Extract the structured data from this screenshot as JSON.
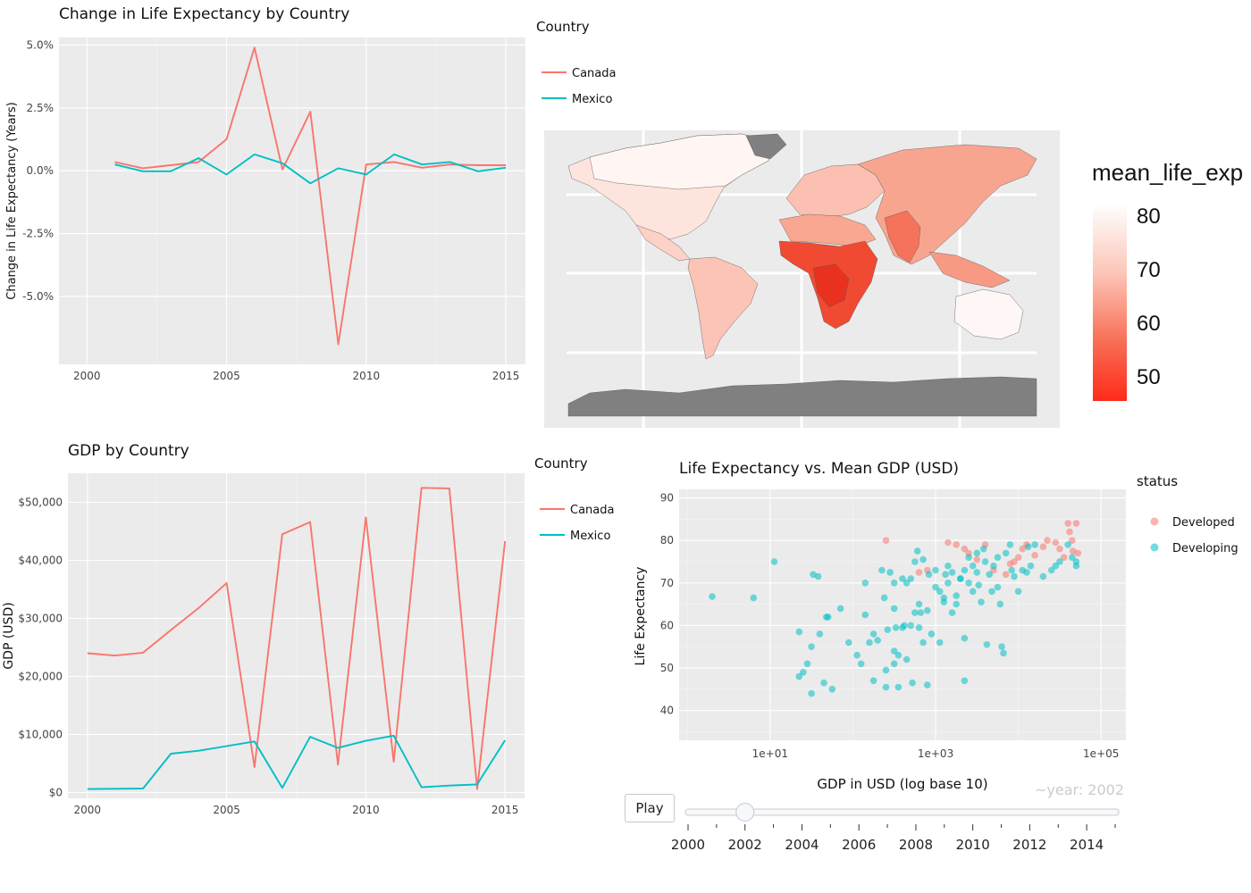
{
  "chart_data": [
    {
      "type": "line",
      "title": "Change in Life Expectancy by Country",
      "xlabel": "",
      "ylabel": "Change in Life Expectancy (Years)",
      "xlim": [
        1999,
        2015.7
      ],
      "ylim": [
        -7.7,
        5.3
      ],
      "x_ticks": [
        2000,
        2005,
        2010,
        2015
      ],
      "y_ticks": [
        -5,
        -2.5,
        0,
        2.5,
        5
      ],
      "y_tick_labels": [
        "-5.0%",
        "-2.5%",
        "0.0%",
        "2.5%",
        "5.0%"
      ],
      "legend_title": "Country",
      "grid": true,
      "x": [
        2001,
        2002,
        2003,
        2004,
        2005,
        2006,
        2007,
        2008,
        2009,
        2010,
        2011,
        2012,
        2013,
        2014,
        2015
      ],
      "series": [
        {
          "name": "Canada",
          "color": "#f8766d",
          "values": [
            0.35,
            0.1,
            0.22,
            0.35,
            1.25,
            4.9,
            0.05,
            2.35,
            -6.9,
            0.25,
            0.35,
            0.12,
            0.25,
            0.22,
            0.22
          ]
        },
        {
          "name": "Mexico",
          "color": "#00bfc4",
          "values": [
            0.25,
            -0.02,
            -0.02,
            0.5,
            -0.15,
            0.65,
            0.3,
            -0.5,
            0.1,
            -0.15,
            0.65,
            0.25,
            0.35,
            -0.02,
            0.12
          ]
        }
      ]
    },
    {
      "type": "heatmap",
      "title": "",
      "legend_title": "mean_life_exp",
      "scale_ticks": [
        80,
        70,
        60,
        50
      ],
      "scale_range": [
        45,
        83
      ],
      "colors": {
        "high": "#ffffff",
        "low": "#ff2a1a",
        "missing": "#808080",
        "panel": "#ebebeb"
      }
    },
    {
      "type": "line",
      "title": "GDP by Country",
      "xlabel": "",
      "ylabel": "GDP (USD)",
      "xlim": [
        1999.3,
        2015.7
      ],
      "ylim": [
        -1000,
        55000
      ],
      "x_ticks": [
        2000,
        2005,
        2010,
        2015
      ],
      "y_ticks": [
        0,
        10000,
        20000,
        30000,
        40000,
        50000
      ],
      "y_tick_labels": [
        "$0",
        "$10,000",
        "$20,000",
        "$30,000",
        "$40,000",
        "$50,000"
      ],
      "legend_title": "Country",
      "grid": true,
      "x": [
        2000,
        2001,
        2002,
        2003,
        2004,
        2005,
        2006,
        2007,
        2008,
        2009,
        2010,
        2011,
        2012,
        2013,
        2014,
        2015
      ],
      "series": [
        {
          "name": "Canada",
          "color": "#f8766d",
          "values": [
            24000,
            23600,
            24100,
            28000,
            31800,
            36100,
            4400,
            44500,
            46600,
            4800,
            47400,
            5300,
            52500,
            52400,
            600,
            43300
          ]
        },
        {
          "name": "Mexico",
          "color": "#00bfc4",
          "values": [
            600,
            650,
            700,
            6700,
            7200,
            8000,
            8800,
            800,
            9600,
            7700,
            8900,
            9800,
            900,
            1200,
            1400,
            9000
          ]
        }
      ]
    },
    {
      "type": "scatter",
      "title": "Life Expectancy vs. Mean GDP (USD)",
      "xlabel": "GDP in USD (log base 10)",
      "ylabel": "Life Expectancy",
      "x_scale": "log10",
      "xlim_log10": [
        -0.1,
        5.3
      ],
      "ylim": [
        33,
        92
      ],
      "x_ticks_log10": [
        1,
        3,
        5
      ],
      "x_tick_labels": [
        "1e+01",
        "1e+03",
        "1e+05"
      ],
      "y_ticks": [
        40,
        50,
        60,
        70,
        80,
        90
      ],
      "legend_title": "status",
      "grid": true,
      "series": [
        {
          "name": "Developed",
          "color": "#f8766d",
          "points": [
            [
              2.4,
              80
            ],
            [
              2.9,
              73
            ],
            [
              2.8,
              72.5
            ],
            [
              3.15,
              79.5
            ],
            [
              3.25,
              79
            ],
            [
              3.35,
              78
            ],
            [
              3.4,
              77
            ],
            [
              3.5,
              75.5
            ],
            [
              3.6,
              79
            ],
            [
              3.7,
              73
            ],
            [
              3.85,
              72
            ],
            [
              3.9,
              74.5
            ],
            [
              3.95,
              75
            ],
            [
              4.0,
              76
            ],
            [
              4.05,
              78
            ],
            [
              4.1,
              79
            ],
            [
              4.2,
              76.5
            ],
            [
              4.3,
              78.5
            ],
            [
              4.35,
              80
            ],
            [
              4.45,
              79.5
            ],
            [
              4.5,
              78
            ],
            [
              4.55,
              76
            ],
            [
              4.6,
              84
            ],
            [
              4.62,
              82
            ],
            [
              4.65,
              80
            ],
            [
              4.66,
              77.5
            ],
            [
              4.7,
              84
            ],
            [
              4.72,
              77
            ]
          ]
        },
        {
          "name": "Developing",
          "color": "#00bfc4",
          "points": [
            [
              0.3,
              66.8
            ],
            [
              0.8,
              66.5
            ],
            [
              1.05,
              75
            ],
            [
              1.35,
              58.5
            ],
            [
              1.35,
              48
            ],
            [
              1.4,
              49
            ],
            [
              1.45,
              51
            ],
            [
              1.5,
              55
            ],
            [
              1.5,
              44
            ],
            [
              1.52,
              72
            ],
            [
              1.58,
              71.5
            ],
            [
              1.6,
              58
            ],
            [
              1.65,
              46.5
            ],
            [
              1.68,
              62
            ],
            [
              1.7,
              62
            ],
            [
              1.75,
              45
            ],
            [
              1.85,
              64
            ],
            [
              1.95,
              56
            ],
            [
              2.05,
              53
            ],
            [
              2.1,
              51
            ],
            [
              2.15,
              70
            ],
            [
              2.15,
              62.5
            ],
            [
              2.2,
              56
            ],
            [
              2.25,
              47
            ],
            [
              2.25,
              58
            ],
            [
              2.3,
              56.5
            ],
            [
              2.35,
              73
            ],
            [
              2.38,
              66.5
            ],
            [
              2.4,
              49.5
            ],
            [
              2.4,
              45.5
            ],
            [
              2.42,
              59
            ],
            [
              2.45,
              72.5
            ],
            [
              2.5,
              70
            ],
            [
              2.5,
              54
            ],
            [
              2.5,
              51
            ],
            [
              2.5,
              64
            ],
            [
              2.52,
              59.5
            ],
            [
              2.55,
              53
            ],
            [
              2.55,
              45.5
            ],
            [
              2.6,
              71
            ],
            [
              2.6,
              59.5
            ],
            [
              2.62,
              60
            ],
            [
              2.65,
              52
            ],
            [
              2.65,
              70
            ],
            [
              2.7,
              71
            ],
            [
              2.7,
              60
            ],
            [
              2.72,
              46.5
            ],
            [
              2.75,
              75
            ],
            [
              2.75,
              63
            ],
            [
              2.78,
              77.5
            ],
            [
              2.8,
              59.5
            ],
            [
              2.8,
              65
            ],
            [
              2.82,
              63
            ],
            [
              2.85,
              56
            ],
            [
              2.85,
              75.5
            ],
            [
              2.9,
              63.5
            ],
            [
              2.9,
              46
            ],
            [
              2.92,
              72
            ],
            [
              2.95,
              58
            ],
            [
              3.0,
              69
            ],
            [
              3.0,
              73
            ],
            [
              3.05,
              68
            ],
            [
              3.05,
              56
            ],
            [
              3.1,
              66.5
            ],
            [
              3.1,
              65.5
            ],
            [
              3.12,
              72
            ],
            [
              3.15,
              74
            ],
            [
              3.15,
              70
            ],
            [
              3.2,
              72.5
            ],
            [
              3.2,
              63
            ],
            [
              3.25,
              67
            ],
            [
              3.25,
              65
            ],
            [
              3.3,
              71
            ],
            [
              3.3,
              71
            ],
            [
              3.35,
              73
            ],
            [
              3.35,
              57
            ],
            [
              3.35,
              47
            ],
            [
              3.4,
              70
            ],
            [
              3.4,
              76
            ],
            [
              3.45,
              74
            ],
            [
              3.45,
              68
            ],
            [
              3.5,
              72.5
            ],
            [
              3.5,
              77
            ],
            [
              3.52,
              69.5
            ],
            [
              3.55,
              65.5
            ],
            [
              3.58,
              78
            ],
            [
              3.6,
              75
            ],
            [
              3.62,
              55.5
            ],
            [
              3.65,
              72
            ],
            [
              3.68,
              68
            ],
            [
              3.7,
              74
            ],
            [
              3.75,
              76
            ],
            [
              3.75,
              69
            ],
            [
              3.78,
              65
            ],
            [
              3.8,
              55
            ],
            [
              3.82,
              53.5
            ],
            [
              3.85,
              77
            ],
            [
              3.9,
              79
            ],
            [
              3.92,
              73
            ],
            [
              3.95,
              71.5
            ],
            [
              4.0,
              68
            ],
            [
              4.05,
              73
            ],
            [
              4.1,
              72.5
            ],
            [
              4.12,
              78.5
            ],
            [
              4.15,
              74
            ],
            [
              4.2,
              79
            ],
            [
              4.3,
              71.5
            ],
            [
              4.4,
              73
            ],
            [
              4.45,
              74
            ],
            [
              4.5,
              75
            ],
            [
              4.6,
              79
            ],
            [
              4.65,
              76
            ],
            [
              4.7,
              75
            ],
            [
              4.7,
              74
            ]
          ]
        }
      ],
      "current_frame_label": "~year: 2002",
      "animation": {
        "button_label": "Play",
        "min": 2000,
        "max": 2015,
        "value": 2002,
        "slider_ticks": [
          2000,
          2002,
          2004,
          2006,
          2008,
          2010,
          2012,
          2014
        ]
      }
    }
  ]
}
